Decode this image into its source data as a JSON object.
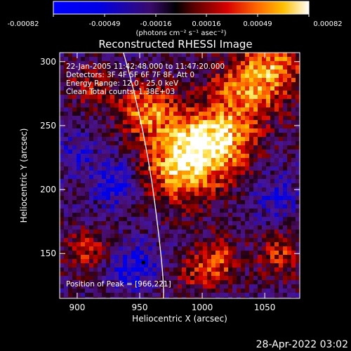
{
  "colorbar": {
    "ticks": [
      "-0.00082",
      "-0.00049",
      "-0.00016",
      "0.00016",
      "0.00049",
      "0.00082"
    ],
    "unit_label": "(photons cm⁻² s⁻¹ asec⁻²)",
    "min": -0.00082,
    "max": 0.00082
  },
  "info": {
    "time_range": "22-Jan-2005 11:42:48.000 to 11:47:20.000",
    "detectors": "Detectors: 3F 4F 5F 6F 7F 8F, Att 0",
    "energy": "Energy Range: 12.0 - 25.0 keV",
    "clean": "Clean     Total counts: 1.38E+03"
  },
  "peak_label": "Position of Peak = [966,221]",
  "footer_date": "28-Apr-2022 03:02",
  "chart_data": {
    "type": "heatmap",
    "title": "Reconstructed RHESSI Image",
    "xlabel": "Heliocentric X (arcsec)",
    "ylabel": "Heliocentric Y (arcsec)",
    "xlim": [
      886,
      1078
    ],
    "ylim": [
      115,
      307
    ],
    "x_ticks": [
      900,
      950,
      1000,
      1050
    ],
    "y_ticks": [
      150,
      200,
      250,
      300
    ],
    "peak": {
      "x": 966,
      "y": 221
    },
    "limb_curve": {
      "x": [
        937,
        950,
        962,
        969
      ],
      "y": [
        307,
        250,
        190,
        115
      ]
    },
    "blobs": [
      {
        "x": 985,
        "y": 222,
        "sx": 22,
        "sy": 22,
        "a": 1.05
      },
      {
        "x": 1015,
        "y": 240,
        "sx": 20,
        "sy": 18,
        "a": 0.85
      },
      {
        "x": 955,
        "y": 262,
        "sx": 16,
        "sy": 14,
        "a": 0.75
      },
      {
        "x": 1038,
        "y": 280,
        "sx": 22,
        "sy": 18,
        "a": 0.75
      },
      {
        "x": 1060,
        "y": 300,
        "sx": 18,
        "sy": 14,
        "a": 0.55
      },
      {
        "x": 912,
        "y": 282,
        "sx": 14,
        "sy": 12,
        "a": 0.45
      },
      {
        "x": 908,
        "y": 152,
        "sx": 14,
        "sy": 12,
        "a": 0.5
      },
      {
        "x": 1012,
        "y": 146,
        "sx": 14,
        "sy": 12,
        "a": 0.55
      },
      {
        "x": 1062,
        "y": 150,
        "sx": 12,
        "sy": 14,
        "a": 0.5
      },
      {
        "x": 992,
        "y": 132,
        "sx": 18,
        "sy": 10,
        "a": 0.35
      },
      {
        "x": 930,
        "y": 205,
        "sx": 12,
        "sy": 12,
        "a": -0.5
      },
      {
        "x": 1060,
        "y": 192,
        "sx": 12,
        "sy": 14,
        "a": -0.3
      },
      {
        "x": 945,
        "y": 140,
        "sx": 16,
        "sy": 12,
        "a": -0.5
      },
      {
        "x": 900,
        "y": 228,
        "sx": 10,
        "sy": 10,
        "a": -0.3
      }
    ]
  }
}
